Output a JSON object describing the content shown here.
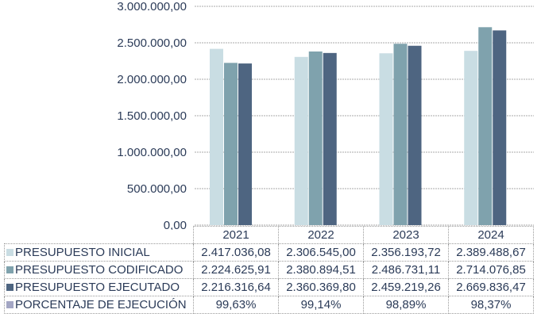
{
  "chart_data": {
    "type": "bar",
    "categories": [
      "2021",
      "2022",
      "2023",
      "2024"
    ],
    "ylim": [
      0,
      3000000
    ],
    "yticks": [
      "0,00",
      "500.000,00",
      "1.000.000,00",
      "1.500.000,00",
      "2.000.000,00",
      "2.500.000,00",
      "3.000.000,00"
    ],
    "grid": true,
    "legend_placement": "table-bottom",
    "series": [
      {
        "name": "PRESUPUESTO INICIAL",
        "color": "#c9dde3",
        "values": [
          2417036.08,
          2306545.0,
          2356193.72,
          2389488.67
        ],
        "labels": [
          "2.417.036,08",
          "2.306.545,00",
          "2.356.193,72",
          "2.389.488,67"
        ]
      },
      {
        "name": "PRESUPUESTO CODIFICADO",
        "color": "#7fa2ad",
        "values": [
          2224625.91,
          2380894.51,
          2486731.11,
          2714076.85
        ],
        "labels": [
          "2.224.625,91",
          "2.380.894,51",
          "2.486.731,11",
          "2.714.076,85"
        ]
      },
      {
        "name": "PRESUPUESTO EJECUTADO",
        "color": "#4e6581",
        "values": [
          2216316.64,
          2360369.8,
          2459219.26,
          2669836.47
        ],
        "labels": [
          "2.216.316,64",
          "2.360.369,80",
          "2.459.219,26",
          "2.669.836,47"
        ]
      },
      {
        "name": "PORCENTAJE DE EJECUCIÓN",
        "color": "#a3a6c4",
        "values": [
          99.63,
          99.14,
          98.89,
          98.37
        ],
        "labels": [
          "99,63%",
          "99,14%",
          "98,89%",
          "98,37%"
        ],
        "plotted": false
      }
    ]
  }
}
